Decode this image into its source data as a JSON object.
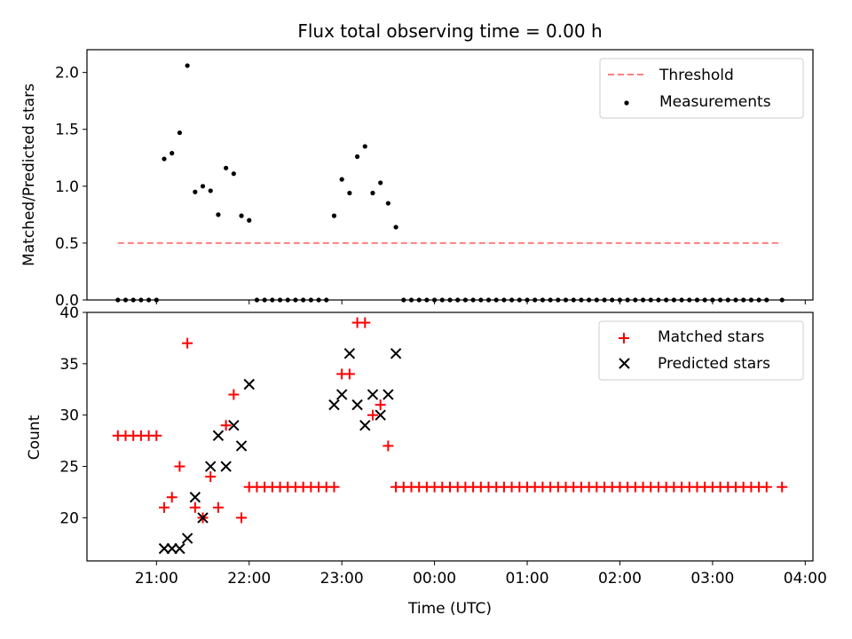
{
  "chart_data": [
    {
      "type": "scatter",
      "title": "Flux total observing time = 0.00 h",
      "xlabel": "",
      "ylabel": "Matched/Predicted stars",
      "ylim": [
        0,
        2.2
      ],
      "yticks": [
        "0.0",
        "0.5",
        "1.0",
        "1.5",
        "2.0"
      ],
      "xlim": [
        "20:15",
        "04:05"
      ],
      "legend_position": "top-right",
      "threshold": {
        "name": "Threshold",
        "value": 0.5,
        "x_start": "20:35",
        "x_end": "03:45",
        "color": "#ff7f7f"
      },
      "series": [
        {
          "name": "Measurements",
          "color": "#000000",
          "points": [
            [
              "20:35",
              0
            ],
            [
              "20:40",
              0
            ],
            [
              "20:45",
              0
            ],
            [
              "20:50",
              0
            ],
            [
              "20:55",
              0
            ],
            [
              "21:00",
              0
            ],
            [
              "21:05",
              1.24
            ],
            [
              "21:10",
              1.29
            ],
            [
              "21:15",
              1.47
            ],
            [
              "21:20",
              2.06
            ],
            [
              "21:25",
              0.95
            ],
            [
              "21:30",
              1.0
            ],
            [
              "21:35",
              0.96
            ],
            [
              "21:40",
              0.75
            ],
            [
              "21:45",
              1.16
            ],
            [
              "21:50",
              1.11
            ],
            [
              "21:55",
              0.74
            ],
            [
              "22:00",
              0.7
            ],
            [
              "22:05",
              0
            ],
            [
              "22:10",
              0
            ],
            [
              "22:15",
              0
            ],
            [
              "22:20",
              0
            ],
            [
              "22:25",
              0
            ],
            [
              "22:30",
              0
            ],
            [
              "22:35",
              0
            ],
            [
              "22:40",
              0
            ],
            [
              "22:45",
              0
            ],
            [
              "22:50",
              0
            ],
            [
              "22:55",
              0.74
            ],
            [
              "23:00",
              1.06
            ],
            [
              "23:05",
              0.94
            ],
            [
              "23:10",
              1.26
            ],
            [
              "23:15",
              1.35
            ],
            [
              "23:20",
              0.94
            ],
            [
              "23:25",
              1.03
            ],
            [
              "23:30",
              0.85
            ],
            [
              "23:35",
              0.64
            ],
            [
              "23:40",
              0
            ],
            [
              "23:45",
              0
            ],
            [
              "23:50",
              0
            ],
            [
              "23:55",
              0
            ],
            [
              "00:00",
              0
            ],
            [
              "00:05",
              0
            ],
            [
              "00:10",
              0
            ],
            [
              "00:15",
              0
            ],
            [
              "00:20",
              0
            ],
            [
              "00:25",
              0
            ],
            [
              "00:30",
              0
            ],
            [
              "00:35",
              0
            ],
            [
              "00:40",
              0
            ],
            [
              "00:45",
              0
            ],
            [
              "00:50",
              0
            ],
            [
              "00:55",
              0
            ],
            [
              "01:00",
              0
            ],
            [
              "01:05",
              0
            ],
            [
              "01:10",
              0
            ],
            [
              "01:15",
              0
            ],
            [
              "01:20",
              0
            ],
            [
              "01:25",
              0
            ],
            [
              "01:30",
              0
            ],
            [
              "01:35",
              0
            ],
            [
              "01:40",
              0
            ],
            [
              "01:45",
              0
            ],
            [
              "01:50",
              0
            ],
            [
              "01:55",
              0
            ],
            [
              "02:00",
              0
            ],
            [
              "02:05",
              0
            ],
            [
              "02:10",
              0
            ],
            [
              "02:15",
              0
            ],
            [
              "02:20",
              0
            ],
            [
              "02:25",
              0
            ],
            [
              "02:30",
              0
            ],
            [
              "02:35",
              0
            ],
            [
              "02:40",
              0
            ],
            [
              "02:45",
              0
            ],
            [
              "02:50",
              0
            ],
            [
              "02:55",
              0
            ],
            [
              "03:00",
              0
            ],
            [
              "03:05",
              0
            ],
            [
              "03:10",
              0
            ],
            [
              "03:15",
              0
            ],
            [
              "03:20",
              0
            ],
            [
              "03:25",
              0
            ],
            [
              "03:30",
              0
            ],
            [
              "03:35",
              0
            ],
            [
              "03:45",
              0
            ]
          ]
        }
      ]
    },
    {
      "type": "scatter",
      "title": "",
      "xlabel": "Time (UTC)",
      "ylabel": "Count",
      "ylim": [
        15.8,
        40
      ],
      "yticks": [
        "20",
        "25",
        "30",
        "35",
        "40"
      ],
      "xlim": [
        "20:15",
        "04:05"
      ],
      "xticks": [
        "21:00",
        "22:00",
        "23:00",
        "00:00",
        "01:00",
        "02:00",
        "03:00",
        "04:00"
      ],
      "legend_position": "top-right",
      "series": [
        {
          "name": "Matched stars",
          "marker": "plus",
          "color": "#ff0000",
          "points": [
            [
              "20:35",
              28
            ],
            [
              "20:40",
              28
            ],
            [
              "20:45",
              28
            ],
            [
              "20:50",
              28
            ],
            [
              "20:55",
              28
            ],
            [
              "21:00",
              28
            ],
            [
              "21:05",
              21
            ],
            [
              "21:10",
              22
            ],
            [
              "21:15",
              25
            ],
            [
              "21:20",
              37
            ],
            [
              "21:25",
              21
            ],
            [
              "21:30",
              20
            ],
            [
              "21:35",
              24
            ],
            [
              "21:40",
              21
            ],
            [
              "21:45",
              29
            ],
            [
              "21:50",
              32
            ],
            [
              "21:55",
              20
            ],
            [
              "22:00",
              23
            ],
            [
              "22:05",
              23
            ],
            [
              "22:10",
              23
            ],
            [
              "22:15",
              23
            ],
            [
              "22:20",
              23
            ],
            [
              "22:25",
              23
            ],
            [
              "22:30",
              23
            ],
            [
              "22:35",
              23
            ],
            [
              "22:40",
              23
            ],
            [
              "22:45",
              23
            ],
            [
              "22:50",
              23
            ],
            [
              "22:55",
              23
            ],
            [
              "23:00",
              34
            ],
            [
              "23:05",
              34
            ],
            [
              "23:10",
              39
            ],
            [
              "23:15",
              39
            ],
            [
              "23:20",
              30
            ],
            [
              "23:25",
              31
            ],
            [
              "23:30",
              27
            ],
            [
              "23:35",
              23
            ],
            [
              "23:40",
              23
            ],
            [
              "23:45",
              23
            ],
            [
              "23:50",
              23
            ],
            [
              "23:55",
              23
            ],
            [
              "00:00",
              23
            ],
            [
              "00:05",
              23
            ],
            [
              "00:10",
              23
            ],
            [
              "00:15",
              23
            ],
            [
              "00:20",
              23
            ],
            [
              "00:25",
              23
            ],
            [
              "00:30",
              23
            ],
            [
              "00:35",
              23
            ],
            [
              "00:40",
              23
            ],
            [
              "00:45",
              23
            ],
            [
              "00:50",
              23
            ],
            [
              "00:55",
              23
            ],
            [
              "01:00",
              23
            ],
            [
              "01:05",
              23
            ],
            [
              "01:10",
              23
            ],
            [
              "01:15",
              23
            ],
            [
              "01:20",
              23
            ],
            [
              "01:25",
              23
            ],
            [
              "01:30",
              23
            ],
            [
              "01:35",
              23
            ],
            [
              "01:40",
              23
            ],
            [
              "01:45",
              23
            ],
            [
              "01:50",
              23
            ],
            [
              "01:55",
              23
            ],
            [
              "02:00",
              23
            ],
            [
              "02:05",
              23
            ],
            [
              "02:10",
              23
            ],
            [
              "02:15",
              23
            ],
            [
              "02:20",
              23
            ],
            [
              "02:25",
              23
            ],
            [
              "02:30",
              23
            ],
            [
              "02:35",
              23
            ],
            [
              "02:40",
              23
            ],
            [
              "02:45",
              23
            ],
            [
              "02:50",
              23
            ],
            [
              "02:55",
              23
            ],
            [
              "03:00",
              23
            ],
            [
              "03:05",
              23
            ],
            [
              "03:10",
              23
            ],
            [
              "03:15",
              23
            ],
            [
              "03:20",
              23
            ],
            [
              "03:25",
              23
            ],
            [
              "03:30",
              23
            ],
            [
              "03:35",
              23
            ],
            [
              "03:45",
              23
            ]
          ]
        },
        {
          "name": "Predicted stars",
          "marker": "x",
          "color": "#000000",
          "points": [
            [
              "21:05",
              17
            ],
            [
              "21:10",
              17
            ],
            [
              "21:15",
              17
            ],
            [
              "21:20",
              18
            ],
            [
              "21:25",
              22
            ],
            [
              "21:30",
              20
            ],
            [
              "21:35",
              25
            ],
            [
              "21:40",
              28
            ],
            [
              "21:45",
              25
            ],
            [
              "21:50",
              29
            ],
            [
              "21:55",
              27
            ],
            [
              "22:00",
              33
            ],
            [
              "22:55",
              31
            ],
            [
              "23:00",
              32
            ],
            [
              "23:05",
              36
            ],
            [
              "23:10",
              31
            ],
            [
              "23:15",
              29
            ],
            [
              "23:20",
              32
            ],
            [
              "23:25",
              30
            ],
            [
              "23:30",
              32
            ],
            [
              "23:35",
              36
            ]
          ]
        }
      ]
    }
  ]
}
